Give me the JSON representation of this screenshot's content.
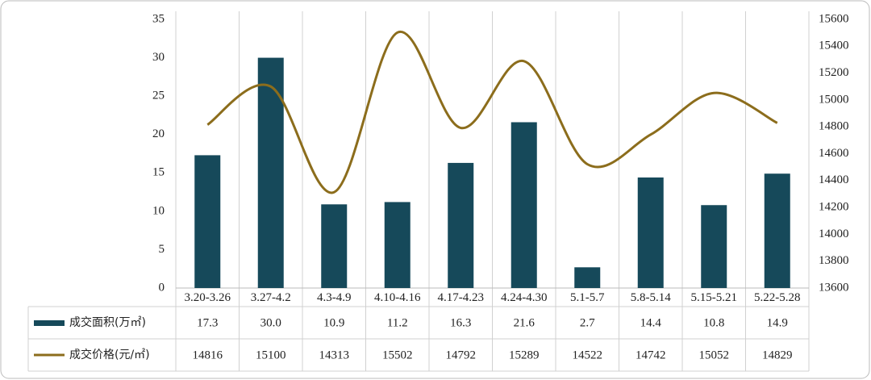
{
  "chart_data": {
    "type": "bar",
    "categories": [
      "3.20-3.26",
      "3.27-4.2",
      "4.3-4.9",
      "4.10-4.16",
      "4.17-4.23",
      "4.24-4.30",
      "5.1-5.7",
      "5.8-5.14",
      "5.15-5.21",
      "5.22-5.28"
    ],
    "series": [
      {
        "name": "成交面积(万㎡)",
        "type": "bar",
        "color": "#16495a",
        "values": [
          17.3,
          30.0,
          10.9,
          11.2,
          16.3,
          21.6,
          2.7,
          14.4,
          10.8,
          14.9
        ],
        "value_labels": [
          "17.3",
          "30.0",
          "10.9",
          "11.2",
          "16.3",
          "21.6",
          "2.7",
          "14.4",
          "10.8",
          "14.9"
        ]
      },
      {
        "name": "成交价格(元/㎡)",
        "type": "line",
        "axis": "y2",
        "color": "#8c6d1c",
        "values": [
          14816,
          15100,
          14313,
          15502,
          14792,
          15289,
          14522,
          14742,
          15052,
          14829
        ]
      }
    ],
    "ylim": [
      0,
      35
    ],
    "yticks": [
      0,
      5,
      10,
      15,
      20,
      25,
      30,
      35
    ],
    "y2lim": [
      13600,
      15600
    ],
    "y2ticks": [
      13600,
      13800,
      14000,
      14200,
      14400,
      14600,
      14800,
      15000,
      15200,
      15400,
      15600
    ],
    "smooth": true,
    "data_table": true
  }
}
